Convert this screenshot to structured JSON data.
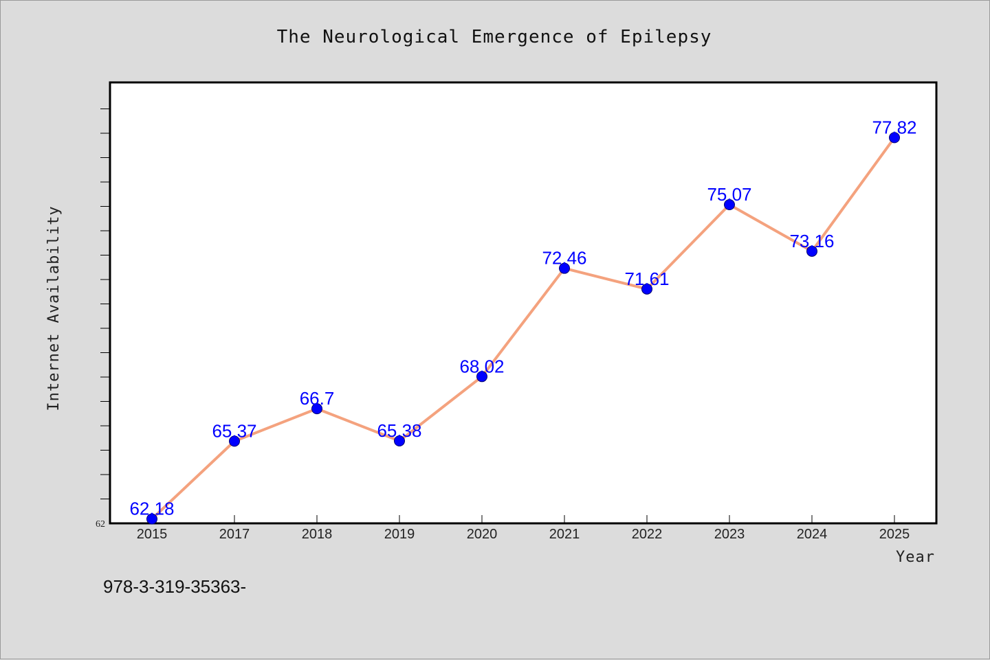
{
  "chart_data": {
    "type": "line",
    "title": "The Neurological Emergence of Epilepsy",
    "xlabel": "Year",
    "ylabel": "Internet Availability",
    "categories": [
      "2015",
      "2017",
      "2018",
      "2019",
      "2020",
      "2021",
      "2022",
      "2023",
      "2024",
      "2025"
    ],
    "series": [
      {
        "values": [
          62.18,
          65.37,
          66.7,
          65.38,
          68.02,
          72.46,
          71.61,
          75.07,
          73.16,
          77.82
        ],
        "labels": [
          "62.18",
          "65.37",
          "66.7",
          "65.38",
          "68.02",
          "72.46",
          "71.61",
          "75.07",
          "73.16",
          "77.82"
        ]
      }
    ],
    "ylim": [
      62,
      80
    ],
    "ytick_label": "62",
    "grid": false,
    "legend": "none",
    "line_color": "#f4a27e",
    "marker_color": "#0000ff",
    "label_color": "#0000ff"
  },
  "footer": {
    "text": "978-3-319-35363-"
  }
}
